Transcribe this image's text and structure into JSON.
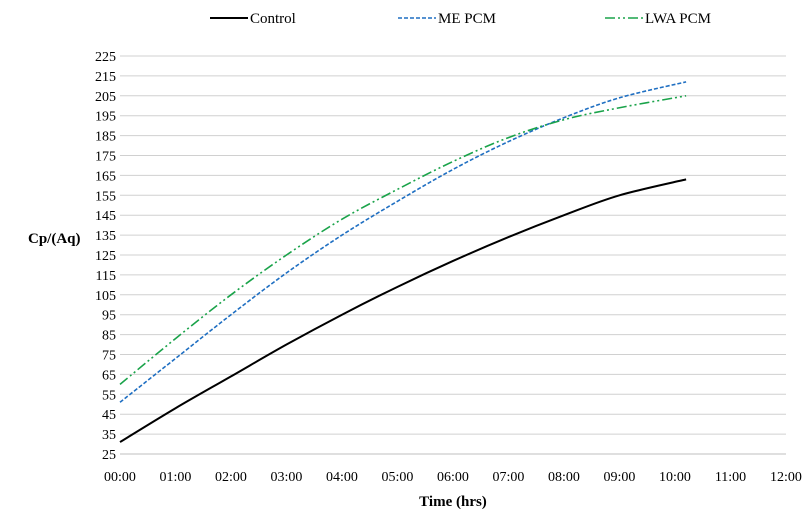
{
  "chart_data": {
    "type": "line",
    "title": "",
    "xlabel": "Time (hrs)",
    "ylabel": "Cp/(Aq)",
    "x_tick_labels": [
      "00:00",
      "01:00",
      "02:00",
      "03:00",
      "04:00",
      "05:00",
      "06:00",
      "07:00",
      "08:00",
      "09:00",
      "10:00",
      "11:00",
      "12:00"
    ],
    "y_ticks": [
      25,
      35,
      45,
      55,
      65,
      75,
      85,
      95,
      105,
      115,
      125,
      135,
      145,
      155,
      165,
      175,
      185,
      195,
      205,
      215,
      225
    ],
    "xlim": [
      0,
      12
    ],
    "ylim": [
      25,
      225
    ],
    "grid": "horizontal",
    "legend_position": "top",
    "x_unit": "hours",
    "x": [
      0,
      1,
      2,
      3,
      4,
      5,
      6,
      7,
      8,
      9,
      10.2
    ],
    "series": [
      {
        "name": "Control",
        "color": "#000000",
        "style": "solid",
        "values": [
          31,
          48,
          64,
          80,
          95,
          109,
          122,
          134,
          145,
          155,
          163
        ]
      },
      {
        "name": "ME PCM",
        "color": "#1f6fc2",
        "style": "dashed",
        "values": [
          51,
          73,
          95,
          116,
          135,
          152,
          168,
          182,
          194,
          204,
          212
        ]
      },
      {
        "name": "LWA PCM",
        "color": "#1aa34a",
        "style": "dash-dot-dot",
        "values": [
          60,
          83,
          105,
          125,
          143,
          158,
          172,
          184,
          193,
          199,
          205
        ]
      }
    ]
  }
}
